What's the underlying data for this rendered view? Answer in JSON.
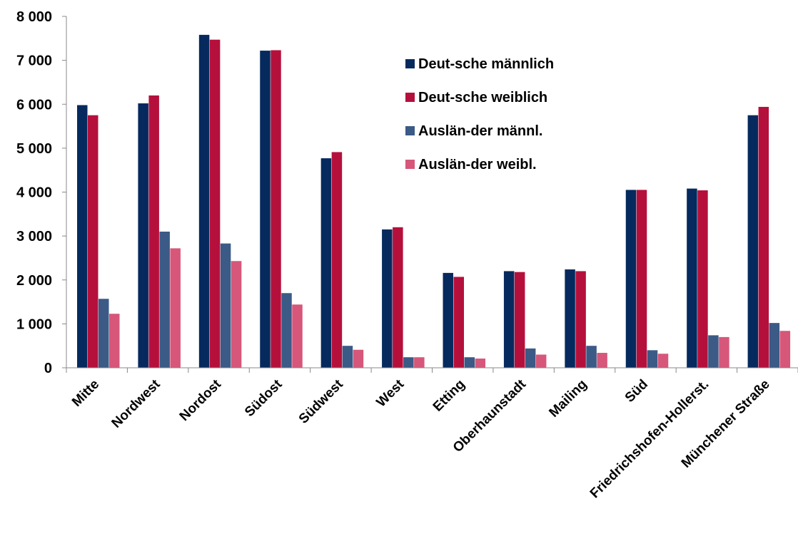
{
  "chart_data": {
    "type": "bar",
    "title": "",
    "xlabel": "",
    "ylabel": "",
    "ylim": [
      0,
      8000
    ],
    "yticks": [
      0,
      1000,
      2000,
      3000,
      4000,
      5000,
      6000,
      7000,
      8000
    ],
    "ytick_labels": [
      "0",
      "1 000",
      "2 000",
      "3 000",
      "4 000",
      "5 000",
      "6 000",
      "7 000",
      "8 000"
    ],
    "grid": false,
    "legend_position": "top-center",
    "categories": [
      "Mitte",
      "Nordwest",
      "Nordost",
      "Südost",
      "Südwest",
      "West",
      "Etting",
      "Oberhaunstadt",
      "Mailing",
      "Süd",
      "Friedrichshofen-Hollerst.",
      "Münchener Straße"
    ],
    "series": [
      {
        "name": "Deut-sche männlich",
        "color": "#062a5e",
        "values": [
          5980,
          6020,
          7580,
          7220,
          4770,
          3150,
          2160,
          2200,
          2240,
          4050,
          4080,
          5750
        ]
      },
      {
        "name": "Deut-sche weiblich",
        "color": "#b5103c",
        "values": [
          5750,
          6200,
          7470,
          7230,
          4910,
          3200,
          2070,
          2180,
          2200,
          4050,
          4040,
          5940
        ]
      },
      {
        "name": "Auslän-der männl.",
        "color": "#3b5a86",
        "values": [
          1570,
          3100,
          2830,
          1700,
          500,
          240,
          240,
          440,
          500,
          400,
          740,
          1020
        ]
      },
      {
        "name": "Auslän-der weibl.",
        "color": "#d6577a",
        "values": [
          1230,
          2720,
          2430,
          1440,
          410,
          240,
          210,
          300,
          340,
          320,
          700,
          840
        ]
      }
    ]
  }
}
